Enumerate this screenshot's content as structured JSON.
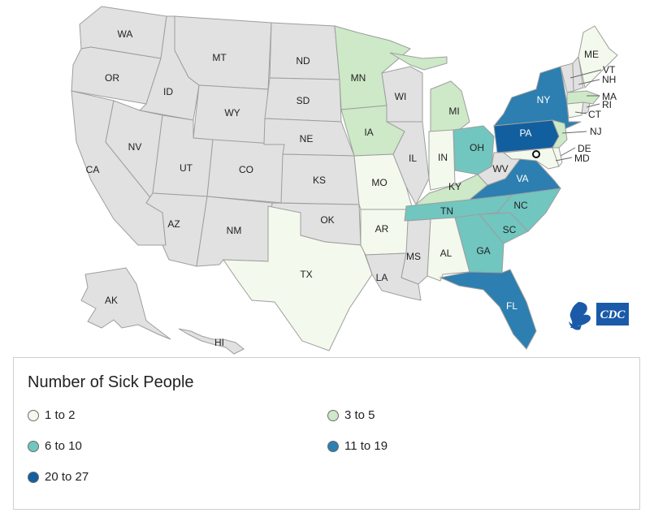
{
  "colors": {
    "no_data": "#e1e1e1",
    "bin1": "#f3f9ec",
    "bin2": "#cde9c7",
    "bin3": "#71c6c0",
    "bin4": "#2c7fb0",
    "bin5": "#125f9f",
    "border": "#9e9e9e"
  },
  "states": {
    "WA": {
      "label": "WA",
      "bin": 0
    },
    "OR": {
      "label": "OR",
      "bin": 0
    },
    "CA": {
      "label": "CA",
      "bin": 0
    },
    "ID": {
      "label": "ID",
      "bin": 0
    },
    "NV": {
      "label": "NV",
      "bin": 0
    },
    "MT": {
      "label": "MT",
      "bin": 0
    },
    "WY": {
      "label": "WY",
      "bin": 0
    },
    "UT": {
      "label": "UT",
      "bin": 0
    },
    "AZ": {
      "label": "AZ",
      "bin": 0
    },
    "CO": {
      "label": "CO",
      "bin": 0
    },
    "NM": {
      "label": "NM",
      "bin": 0
    },
    "ND": {
      "label": "ND",
      "bin": 0
    },
    "SD": {
      "label": "SD",
      "bin": 0
    },
    "NE": {
      "label": "NE",
      "bin": 0
    },
    "KS": {
      "label": "KS",
      "bin": 0
    },
    "OK": {
      "label": "OK",
      "bin": 0
    },
    "TX": {
      "label": "TX",
      "bin": 1
    },
    "MN": {
      "label": "MN",
      "bin": 2
    },
    "IA": {
      "label": "IA",
      "bin": 2
    },
    "MO": {
      "label": "MO",
      "bin": 1
    },
    "AR": {
      "label": "AR",
      "bin": 1
    },
    "LA": {
      "label": "LA",
      "bin": 0
    },
    "WI": {
      "label": "WI",
      "bin": 0
    },
    "IL": {
      "label": "IL",
      "bin": 0
    },
    "MI": {
      "label": "MI",
      "bin": 2
    },
    "IN": {
      "label": "IN",
      "bin": 1
    },
    "OH": {
      "label": "OH",
      "bin": 3
    },
    "KY": {
      "label": "KY",
      "bin": 2
    },
    "TN": {
      "label": "TN",
      "bin": 3
    },
    "MS": {
      "label": "MS",
      "bin": 0
    },
    "AL": {
      "label": "AL",
      "bin": 1
    },
    "GA": {
      "label": "GA",
      "bin": 3
    },
    "FL": {
      "label": "FL",
      "bin": 4
    },
    "SC": {
      "label": "SC",
      "bin": 3
    },
    "NC": {
      "label": "NC",
      "bin": 3
    },
    "VA": {
      "label": "VA",
      "bin": 4
    },
    "WV": {
      "label": "WV",
      "bin": 0
    },
    "PA": {
      "label": "PA",
      "bin": 5
    },
    "NY": {
      "label": "NY",
      "bin": 4
    },
    "NJ": {
      "label": "NJ",
      "bin": 2
    },
    "DE": {
      "label": "DE",
      "bin": 1
    },
    "MD": {
      "label": "MD",
      "bin": 1
    },
    "CT": {
      "label": "CT",
      "bin": 1
    },
    "RI": {
      "label": "RI",
      "bin": 0
    },
    "MA": {
      "label": "MA",
      "bin": 2
    },
    "VT": {
      "label": "VT",
      "bin": 0
    },
    "NH": {
      "label": "NH",
      "bin": 0
    },
    "ME": {
      "label": "ME",
      "bin": 1
    },
    "AK": {
      "label": "AK",
      "bin": 0
    },
    "HI": {
      "label": "HI",
      "bin": 0
    }
  },
  "logo": {
    "text": "CDC"
  },
  "legend": {
    "title": "Number of Sick People",
    "items": [
      {
        "label": "1 to 2",
        "bin": 1
      },
      {
        "label": "3 to 5",
        "bin": 2
      },
      {
        "label": "6 to 10",
        "bin": 3
      },
      {
        "label": "11 to 19",
        "bin": 4
      },
      {
        "label": "20 to 27",
        "bin": 5
      }
    ]
  }
}
